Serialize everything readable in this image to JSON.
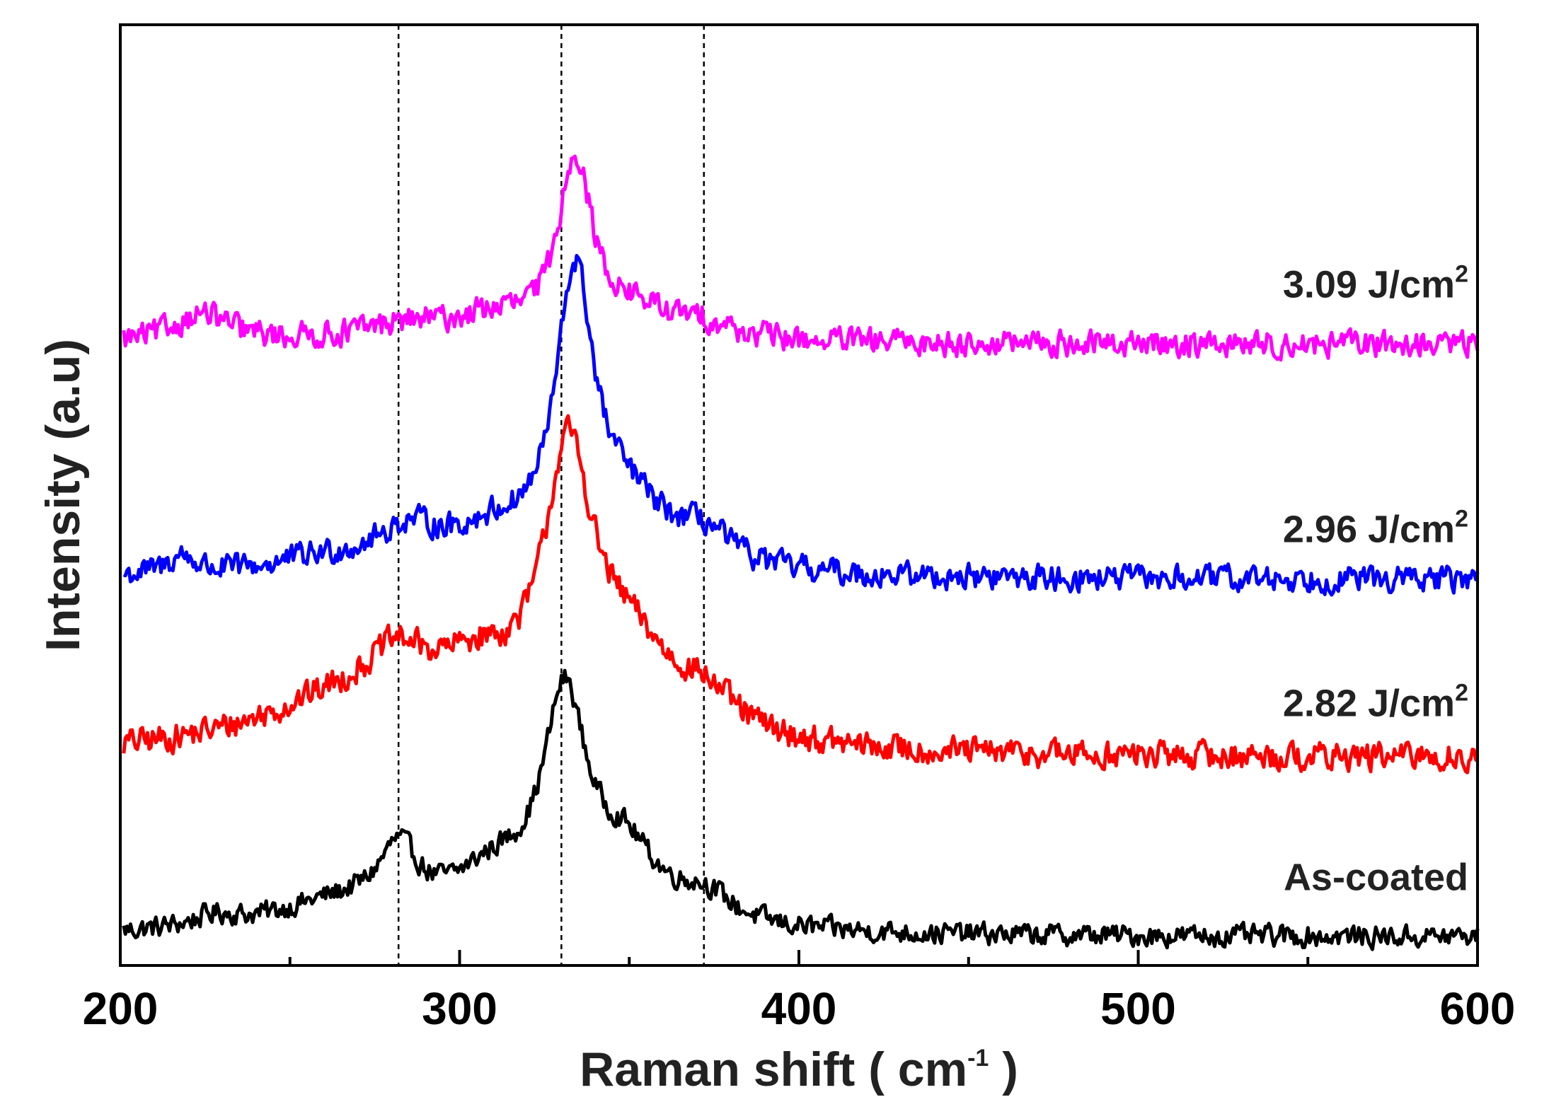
{
  "chart_data": {
    "type": "line",
    "title": "",
    "xlabel": "Raman shift",
    "xlabel_unit_base": "( cm",
    "xlabel_unit_sup": "-1",
    "xlabel_unit_close": " )",
    "ylabel": "Intensity (a.u)",
    "xlim": [
      200,
      600
    ],
    "ylim": [
      0,
      100
    ],
    "grid": false,
    "xticks": [
      200,
      300,
      400,
      500,
      600
    ],
    "xtick_labels": [
      "200",
      "300",
      "400",
      "500",
      "600"
    ],
    "reference_lines": [
      282,
      330,
      372
    ],
    "series": [
      {
        "name": "As-coated",
        "label_base": "As-coated",
        "label_sup": "",
        "color": "#000000",
        "baseline": 3,
        "peaks": [
          {
            "x": 228,
            "height": 1.2,
            "width": 8
          },
          {
            "x": 265,
            "height": 3.0,
            "width": 25
          },
          {
            "x": 282,
            "height": 6.5,
            "width": 7
          },
          {
            "x": 310,
            "height": 5.0,
            "width": 15
          },
          {
            "x": 331,
            "height": 23.0,
            "width": 8
          },
          {
            "x": 349,
            "height": 7.0,
            "width": 12
          },
          {
            "x": 372,
            "height": 3.0,
            "width": 10
          }
        ],
        "noise": 1.0,
        "label_level": 8.0
      },
      {
        "name": "2.82 J/cm2",
        "label_base": "2.82 J/cm",
        "label_sup": "2",
        "color": "#ff0000",
        "baseline": 22,
        "peaks": [
          {
            "x": 270,
            "height": 6.0,
            "width": 35
          },
          {
            "x": 282,
            "height": 4.5,
            "width": 10
          },
          {
            "x": 305,
            "height": 5.5,
            "width": 15
          },
          {
            "x": 332,
            "height": 28.0,
            "width": 9
          },
          {
            "x": 350,
            "height": 8.5,
            "width": 15
          },
          {
            "x": 372,
            "height": 4.0,
            "width": 12
          }
        ],
        "noise": 1.3,
        "label_level": 26.5
      },
      {
        "name": "2.96 J/cm2",
        "label_base": "2.96 J/cm",
        "label_sup": "2",
        "color": "#0000ff",
        "baseline": 41,
        "peaks": [
          {
            "x": 218,
            "height": 2.0,
            "width": 5
          },
          {
            "x": 260,
            "height": 1.5,
            "width": 20
          },
          {
            "x": 285,
            "height": 4.0,
            "width": 12
          },
          {
            "x": 310,
            "height": 3.5,
            "width": 15
          },
          {
            "x": 334,
            "height": 30.0,
            "width": 7
          },
          {
            "x": 350,
            "height": 6.0,
            "width": 13
          },
          {
            "x": 372,
            "height": 3.5,
            "width": 10
          }
        ],
        "noise": 1.2,
        "label_level": 45.0
      },
      {
        "name": "3.09 J/cm2",
        "label_base": "3.09 J/cm",
        "label_sup": "2",
        "color": "#ff00ff",
        "baseline": 66,
        "peaks": [
          {
            "x": 224,
            "height": 3.0,
            "width": 10
          },
          {
            "x": 285,
            "height": 1.8,
            "width": 18
          },
          {
            "x": 310,
            "height": 2.0,
            "width": 12
          },
          {
            "x": 334,
            "height": 19.0,
            "width": 6
          },
          {
            "x": 352,
            "height": 2.8,
            "width": 13
          },
          {
            "x": 372,
            "height": 1.5,
            "width": 10
          }
        ],
        "noise": 1.2,
        "label_level": 71.0
      }
    ]
  }
}
